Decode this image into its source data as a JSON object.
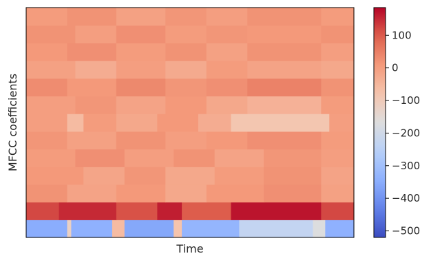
{
  "chart_data": {
    "type": "heatmap",
    "title": "",
    "xlabel": "Time",
    "ylabel": "MFCC coefficients",
    "colormap": "coolwarm",
    "colorbar": {
      "vmin": -520,
      "vmax": 185,
      "ticks": [
        {
          "value": 100,
          "label": "100"
        },
        {
          "value": 0,
          "label": "0"
        },
        {
          "value": -100,
          "label": "−100"
        },
        {
          "value": -200,
          "label": "−200"
        },
        {
          "value": -300,
          "label": "−300"
        },
        {
          "value": -400,
          "label": "−400"
        },
        {
          "value": -500,
          "label": "−500"
        }
      ]
    },
    "n_time_frames": 80,
    "rows": [
      {
        "coefficient": 1,
        "segments": [
          {
            "frames": 10,
            "value": -350
          },
          {
            "frames": 1,
            "value": -120
          },
          {
            "frames": 10,
            "value": -340
          },
          {
            "frames": 3,
            "value": -60
          },
          {
            "frames": 12,
            "value": -360
          },
          {
            "frames": 2,
            "value": -80
          },
          {
            "frames": 14,
            "value": -330
          },
          {
            "frames": 18,
            "value": -230
          },
          {
            "frames": 3,
            "value": -170
          },
          {
            "frames": 7,
            "value": -340
          }
        ]
      },
      {
        "coefficient": 2,
        "segments": [
          {
            "frames": 8,
            "value": 120
          },
          {
            "frames": 14,
            "value": 150
          },
          {
            "frames": 10,
            "value": 110
          },
          {
            "frames": 6,
            "value": 160
          },
          {
            "frames": 12,
            "value": 100
          },
          {
            "frames": 22,
            "value": 170
          },
          {
            "frames": 8,
            "value": 120
          }
        ]
      },
      {
        "coefficient": 3,
        "segments": [
          {
            "frames": 10,
            "value": 20
          },
          {
            "frames": 12,
            "value": -10
          },
          {
            "frames": 12,
            "value": 10
          },
          {
            "frames": 10,
            "value": -20
          },
          {
            "frames": 14,
            "value": 10
          },
          {
            "frames": 14,
            "value": 25
          },
          {
            "frames": 8,
            "value": -5
          }
        ]
      },
      {
        "coefficient": 4,
        "segments": [
          {
            "frames": 14,
            "value": 10
          },
          {
            "frames": 10,
            "value": -15
          },
          {
            "frames": 10,
            "value": 15
          },
          {
            "frames": 12,
            "value": -20
          },
          {
            "frames": 12,
            "value": 5
          },
          {
            "frames": 14,
            "value": 20
          },
          {
            "frames": 8,
            "value": -10
          }
        ]
      },
      {
        "coefficient": 5,
        "segments": [
          {
            "frames": 12,
            "value": 5
          },
          {
            "frames": 12,
            "value": 25
          },
          {
            "frames": 12,
            "value": 0
          },
          {
            "frames": 10,
            "value": 20
          },
          {
            "frames": 12,
            "value": -10
          },
          {
            "frames": 14,
            "value": 15
          },
          {
            "frames": 8,
            "value": 0
          }
        ]
      },
      {
        "coefficient": 6,
        "segments": [
          {
            "frames": 10,
            "value": 15
          },
          {
            "frames": 12,
            "value": -5
          },
          {
            "frames": 12,
            "value": 20
          },
          {
            "frames": 10,
            "value": 0
          },
          {
            "frames": 10,
            "value": 10
          },
          {
            "frames": 18,
            "value": 25
          },
          {
            "frames": 8,
            "value": 5
          }
        ]
      },
      {
        "coefficient": 7,
        "segments": [
          {
            "frames": 10,
            "value": 0
          },
          {
            "frames": 4,
            "value": -60
          },
          {
            "frames": 8,
            "value": 5
          },
          {
            "frames": 10,
            "value": -20
          },
          {
            "frames": 10,
            "value": 10
          },
          {
            "frames": 8,
            "value": -30
          },
          {
            "frames": 24,
            "value": -85
          },
          {
            "frames": 6,
            "value": 0
          }
        ]
      },
      {
        "coefficient": 8,
        "segments": [
          {
            "frames": 12,
            "value": 0
          },
          {
            "frames": 10,
            "value": 15
          },
          {
            "frames": 12,
            "value": -10
          },
          {
            "frames": 10,
            "value": 10
          },
          {
            "frames": 10,
            "value": -20
          },
          {
            "frames": 18,
            "value": -40
          },
          {
            "frames": 8,
            "value": 5
          }
        ]
      },
      {
        "coefficient": 9,
        "segments": [
          {
            "frames": 10,
            "value": 30
          },
          {
            "frames": 12,
            "value": 10
          },
          {
            "frames": 12,
            "value": 35
          },
          {
            "frames": 10,
            "value": 15
          },
          {
            "frames": 10,
            "value": 25
          },
          {
            "frames": 18,
            "value": 45
          },
          {
            "frames": 8,
            "value": 20
          }
        ]
      },
      {
        "coefficient": 10,
        "segments": [
          {
            "frames": 12,
            "value": -5
          },
          {
            "frames": 10,
            "value": -30
          },
          {
            "frames": 12,
            "value": 0
          },
          {
            "frames": 10,
            "value": -25
          },
          {
            "frames": 10,
            "value": 5
          },
          {
            "frames": 18,
            "value": -10
          },
          {
            "frames": 8,
            "value": -20
          }
        ]
      },
      {
        "coefficient": 11,
        "segments": [
          {
            "frames": 10,
            "value": 10
          },
          {
            "frames": 12,
            "value": 25
          },
          {
            "frames": 12,
            "value": 5
          },
          {
            "frames": 10,
            "value": 20
          },
          {
            "frames": 10,
            "value": -5
          },
          {
            "frames": 18,
            "value": 20
          },
          {
            "frames": 8,
            "value": 0
          }
        ]
      },
      {
        "coefficient": 12,
        "segments": [
          {
            "frames": 12,
            "value": 20
          },
          {
            "frames": 10,
            "value": 0
          },
          {
            "frames": 12,
            "value": 25
          },
          {
            "frames": 10,
            "value": 5
          },
          {
            "frames": 10,
            "value": 15
          },
          {
            "frames": 18,
            "value": 10
          },
          {
            "frames": 8,
            "value": 20
          }
        ]
      },
      {
        "coefficient": 13,
        "segments": [
          {
            "frames": 10,
            "value": 5
          },
          {
            "frames": 12,
            "value": 20
          },
          {
            "frames": 12,
            "value": -5
          },
          {
            "frames": 10,
            "value": 15
          },
          {
            "frames": 10,
            "value": 0
          },
          {
            "frames": 18,
            "value": 20
          },
          {
            "frames": 8,
            "value": 5
          }
        ]
      }
    ]
  }
}
